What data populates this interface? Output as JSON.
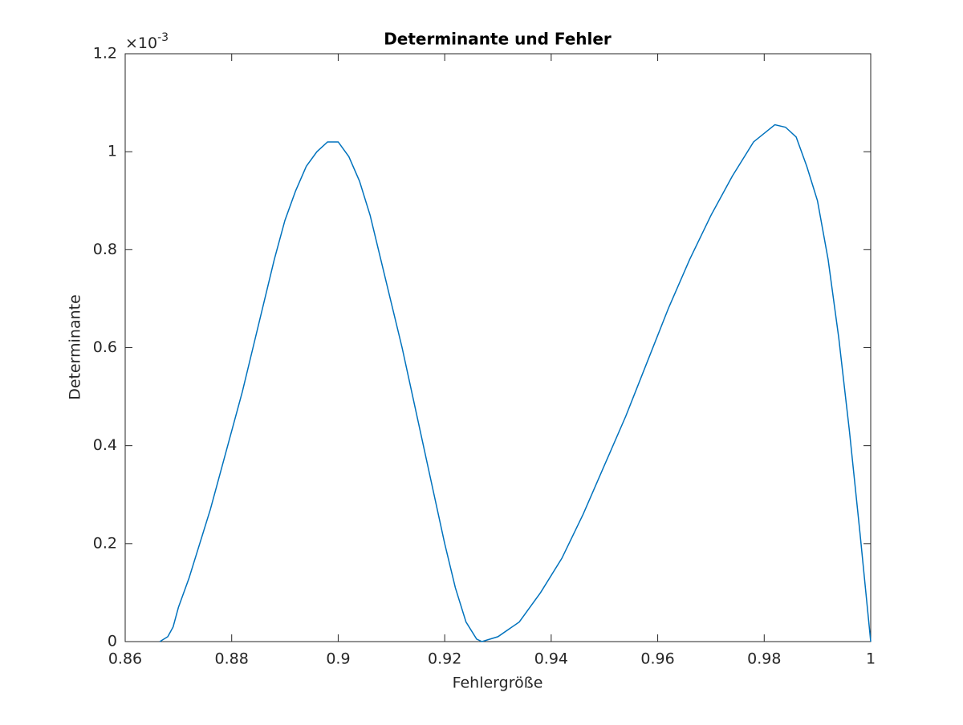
{
  "chart_data": {
    "type": "line",
    "title": "Determinante und Fehler",
    "x_label": "Fehlergröße",
    "y_label": "Determinante",
    "y_multiplier": "×10",
    "y_multiplier_exponent": "-3",
    "x": [
      0.8665,
      0.868,
      0.869,
      0.87,
      0.872,
      0.874,
      0.876,
      0.878,
      0.88,
      0.882,
      0.884,
      0.886,
      0.888,
      0.89,
      0.892,
      0.894,
      0.896,
      0.898,
      0.9,
      0.902,
      0.904,
      0.906,
      0.908,
      0.91,
      0.912,
      0.914,
      0.916,
      0.918,
      0.92,
      0.922,
      0.924,
      0.926,
      0.927,
      0.93,
      0.934,
      0.938,
      0.942,
      0.946,
      0.95,
      0.954,
      0.958,
      0.962,
      0.966,
      0.97,
      0.974,
      0.978,
      0.982,
      0.984,
      0.986,
      0.988,
      0.99,
      0.992,
      0.994,
      0.996,
      0.998,
      1.0
    ],
    "series": [
      {
        "color": "#0072bd",
        "values": [
          0,
          0.01,
          0.03,
          0.07,
          0.13,
          0.2,
          0.27,
          0.35,
          0.43,
          0.51,
          0.6,
          0.69,
          0.78,
          0.86,
          0.92,
          0.97,
          1.0,
          1.02,
          1.02,
          0.99,
          0.94,
          0.87,
          0.78,
          0.69,
          0.6,
          0.5,
          0.4,
          0.3,
          0.2,
          0.11,
          0.04,
          0.005,
          0,
          0.01,
          0.04,
          0.1,
          0.17,
          0.26,
          0.36,
          0.46,
          0.57,
          0.68,
          0.78,
          0.87,
          0.95,
          1.02,
          1.055,
          1.05,
          1.03,
          0.97,
          0.9,
          0.78,
          0.62,
          0.43,
          0.22,
          0
        ]
      }
    ],
    "xlim": [
      0.86,
      1
    ],
    "xticks": [
      0.86,
      0.88,
      0.9,
      0.92,
      0.94,
      0.96,
      0.98,
      1
    ],
    "ylim": [
      0,
      1.2
    ],
    "yticks": [
      0,
      0.2,
      0.4,
      0.6,
      0.8,
      1,
      1.2
    ],
    "grid": false,
    "box": true
  }
}
